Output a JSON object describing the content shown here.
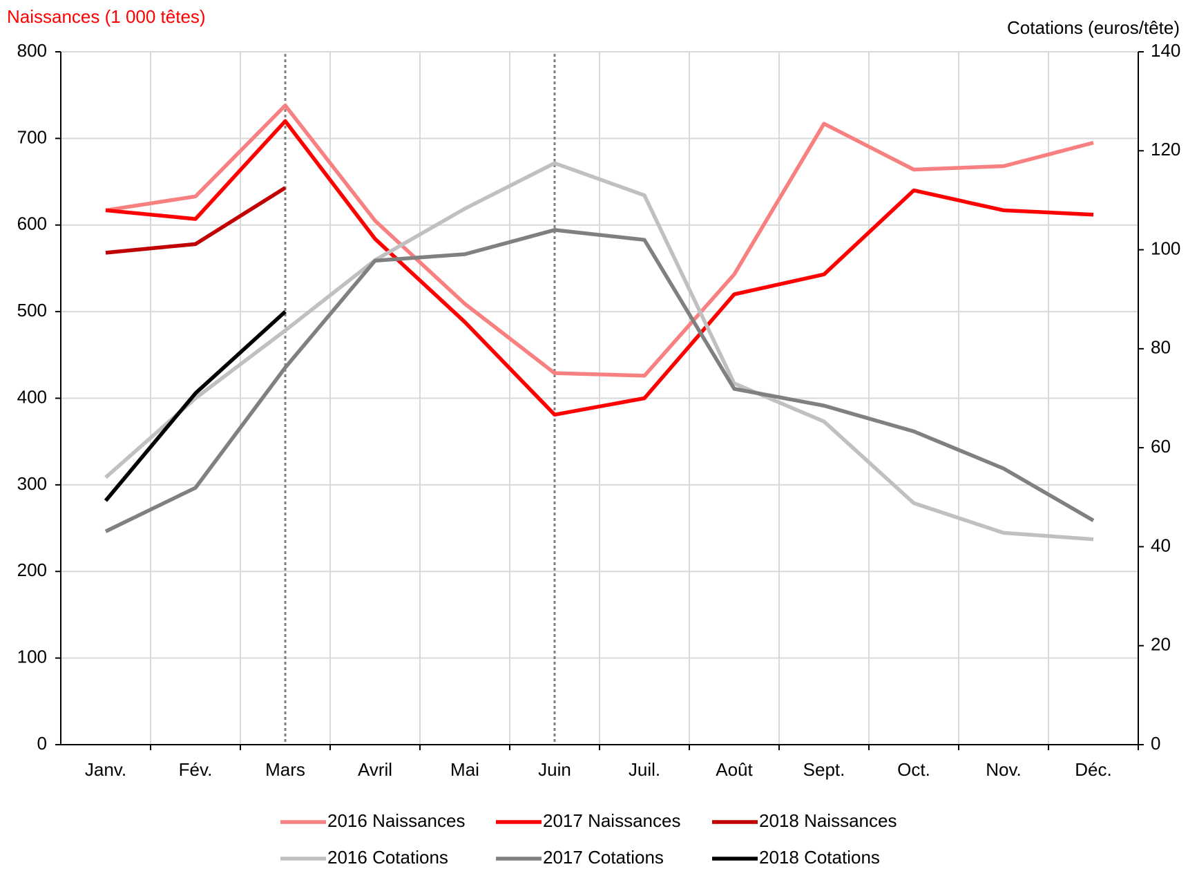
{
  "chart_data": {
    "type": "line",
    "y_label": "Naissances (1 000 têtes)",
    "y2_label": "Cotations (euros/tête)",
    "categories": [
      "Janv.",
      "Fév.",
      "Mars",
      "Avril",
      "Mai",
      "Juin",
      "Juil.",
      "Août",
      "Sept.",
      "Oct.",
      "Nov.",
      "Déc."
    ],
    "series": [
      {
        "name": "2016 Naissances",
        "color": "#f88080",
        "values": [
          617,
          633,
          738,
          605,
          509,
          429,
          426,
          543,
          717,
          664,
          668,
          695
        ]
      },
      {
        "name": "2017 Naissances",
        "color": "#ff0000",
        "values": [
          617,
          607,
          720,
          584,
          488,
          381,
          400,
          520,
          543,
          640,
          617,
          612
        ]
      },
      {
        "name": "2018 Naissances",
        "color": "#c00000",
        "values": [
          568,
          578,
          643,
          null,
          null,
          null,
          null,
          null,
          null,
          null,
          null,
          null
        ]
      },
      {
        "name": "2016 Cotations",
        "color": "#c0c0c0",
        "axis": "y2",
        "values": [
          54,
          70,
          83.7,
          97.9,
          108.3,
          117.5,
          111,
          73,
          65.3,
          48.8,
          42.8,
          41.5
        ]
      },
      {
        "name": "2017 Cotations",
        "color": "#808080",
        "axis": "y2",
        "values": [
          43.1,
          51.9,
          76.2,
          97.8,
          99.1,
          104,
          102,
          71.9,
          68.5,
          63.3,
          55.8,
          45.3
        ]
      },
      {
        "name": "2018 Cotations",
        "color": "#000000",
        "axis": "y2",
        "values": [
          49.3,
          71,
          87.5,
          null,
          null,
          null,
          null,
          null,
          null,
          null,
          null,
          null
        ]
      }
    ],
    "ylim": [
      0,
      800
    ],
    "yticks": [
      0,
      100,
      200,
      300,
      400,
      500,
      600,
      700,
      800
    ],
    "y2lim": [
      0,
      140
    ],
    "y2ticks": [
      0,
      20,
      40,
      60,
      80,
      100,
      120,
      140
    ],
    "grid": true,
    "legend": "bottom"
  }
}
